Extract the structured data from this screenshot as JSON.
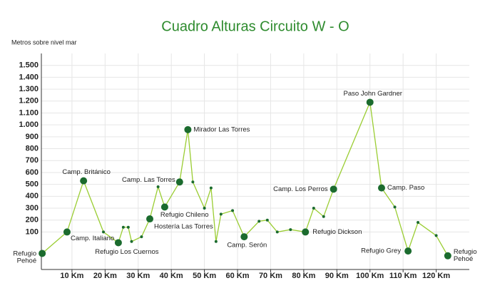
{
  "chart_data": {
    "type": "line",
    "title": "Cuadro Alturas Circuito W - O",
    "y_label": "Metros sobre nivel mar",
    "x": [
      1,
      8.5,
      13.5,
      19.5,
      24,
      25.5,
      27,
      28,
      31,
      33.5,
      36,
      38,
      42.5,
      45,
      46.5,
      50,
      52,
      53.5,
      55,
      58.5,
      62,
      66.5,
      69,
      72,
      76,
      80.5,
      83,
      86,
      89,
      100,
      103.5,
      107.5,
      111.5,
      114.5,
      120,
      123.5
    ],
    "series": [
      {
        "color": "#9acd32",
        "marker_color": "#1b6b2e",
        "values": [
          -80,
          100,
          530,
          100,
          10,
          140,
          140,
          20,
          60,
          210,
          480,
          310,
          520,
          960,
          520,
          300,
          470,
          20,
          250,
          280,
          60,
          190,
          200,
          100,
          120,
          100,
          300,
          230,
          460,
          1190,
          470,
          310,
          -60,
          180,
          70,
          -100
        ],
        "point_labels": [
          "Refugio Pehoé",
          "Camp. Italiano",
          "Camp. Británico",
          null,
          "Refugio Los Cuernos",
          null,
          null,
          null,
          null,
          "Hostería Las Torres",
          null,
          "Refugio Chileno",
          "Camp. Las Torres",
          "Mirador Las Torres",
          null,
          null,
          null,
          null,
          null,
          null,
          "Camp. Serón",
          null,
          null,
          null,
          null,
          "Refugio Dickson",
          null,
          null,
          "Camp. Los Perros",
          "Paso John Gardner",
          "Camp. Paso",
          null,
          "Refugio Grey",
          null,
          null,
          "Refugio Pehoé"
        ]
      }
    ],
    "xlim": [
      0,
      130
    ],
    "ylim": [
      -215,
      1600
    ],
    "xticks": [
      {
        "value": 10,
        "label": "10 Km"
      },
      {
        "value": 20,
        "label": "20 Km"
      },
      {
        "value": 30,
        "label": "30 Km"
      },
      {
        "value": 40,
        "label": "40 Km"
      },
      {
        "value": 50,
        "label": "50 Km"
      },
      {
        "value": 60,
        "label": "60 Km"
      },
      {
        "value": 70,
        "label": "70 Km"
      },
      {
        "value": 80,
        "label": "80 Km"
      },
      {
        "value": 90,
        "label": "90 Km"
      },
      {
        "value": 100,
        "label": "100 Km"
      },
      {
        "value": 110,
        "label": "110 Km"
      },
      {
        "value": 120,
        "label": "120 Km"
      }
    ],
    "yticks": [
      100,
      200,
      300,
      400,
      500,
      600,
      700,
      800,
      900,
      {
        "value": 1000,
        "label": "1.000"
      },
      {
        "value": 1100,
        "label": "1.100"
      },
      {
        "value": 1200,
        "label": "1.200"
      },
      {
        "value": 1300,
        "label": "1.300"
      },
      {
        "value": 1400,
        "label": "1.400"
      },
      {
        "value": 1500,
        "label": "1.500"
      }
    ],
    "grid": true
  }
}
